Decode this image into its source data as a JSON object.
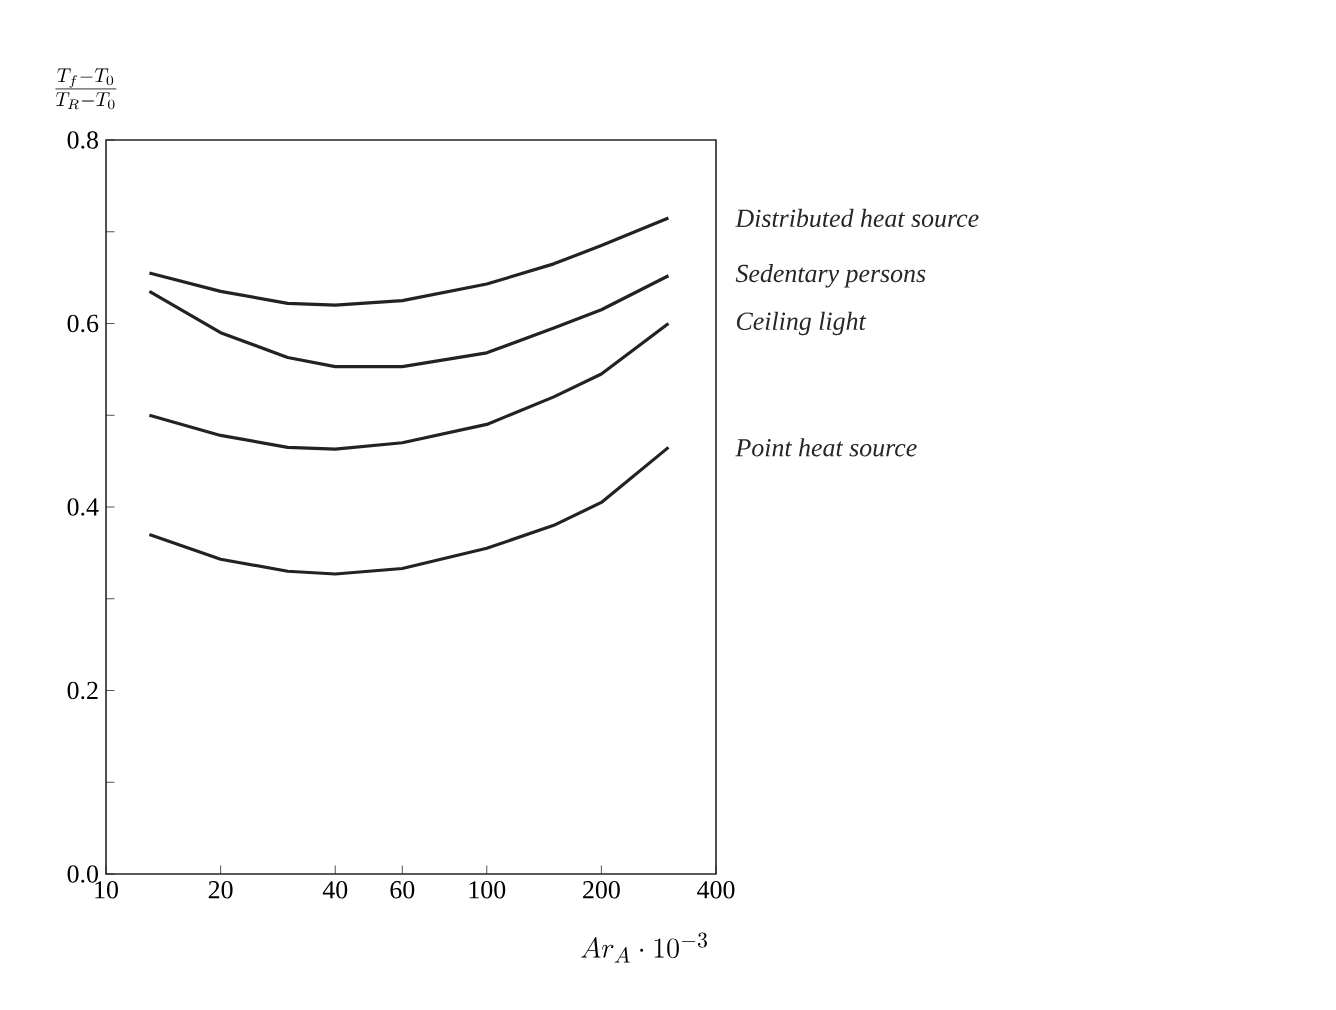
{
  "chart_data": {
    "type": "line",
    "ylabel": "\\frac{T_f-T_0}{T_R-T_0}",
    "xlabel": "Ar_A\\cdot 10^{-3}",
    "log": "x",
    "grid": false,
    "legend": false,
    "marker": "none",
    "line_style": "solid",
    "x": [
      13,
      20,
      30,
      40,
      60,
      100,
      150,
      200,
      300
    ],
    "xlim": [
      10,
      400
    ],
    "xticks": [
      10,
      20,
      40,
      60,
      100,
      200,
      400
    ],
    "ylim": [
      0,
      0.8
    ],
    "yticks": [
      {
        "value": 0,
        "label": "0.0"
      },
      {
        "value": 0.1,
        "label": null
      },
      {
        "value": 0.2,
        "label": "0.2"
      },
      {
        "value": 0.3,
        "label": null
      },
      {
        "value": 0.4,
        "label": "0.4"
      },
      {
        "value": 0.5,
        "label": null
      },
      {
        "value": 0.6,
        "label": "0.6"
      },
      {
        "value": 0.7,
        "label": null
      },
      {
        "value": 0.8,
        "label": "0.8"
      }
    ],
    "series": [
      {
        "name": "Distributed heat source",
        "color": "#222222",
        "values": [
          0.655,
          0.635,
          0.622,
          0.62,
          0.625,
          0.643,
          0.665,
          0.685,
          0.715
        ]
      },
      {
        "name": "Sedentary persons",
        "color": "#222222",
        "values": [
          0.635,
          0.59,
          0.563,
          0.553,
          0.553,
          0.568,
          0.595,
          0.615,
          0.652
        ]
      },
      {
        "name": "Ceiling light",
        "color": "#222222",
        "values": [
          0.5,
          0.478,
          0.465,
          0.463,
          0.47,
          0.49,
          0.52,
          0.545,
          0.6
        ]
      },
      {
        "name": "Point heat source",
        "color": "#222222",
        "values": [
          0.37,
          0.343,
          0.33,
          0.327,
          0.333,
          0.355,
          0.38,
          0.405,
          0.465
        ]
      }
    ]
  }
}
